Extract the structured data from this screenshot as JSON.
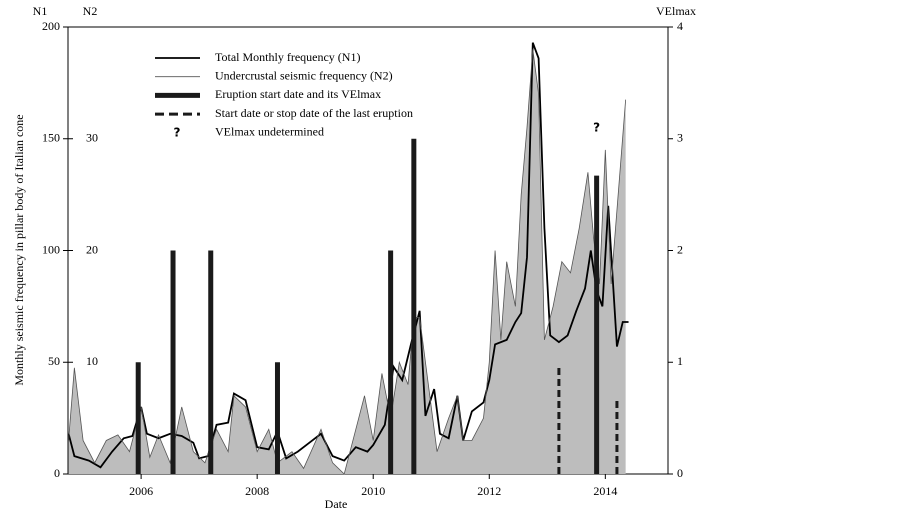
{
  "chart_data": {
    "type": "line",
    "xlabel": "Date",
    "ylabel": "Monthly seismic frequency in pillar body of Italian cone",
    "y_axis_name": "N1",
    "y2_axis_name": "VElmax",
    "xlim": [
      2004.74,
      2015.08
    ],
    "xticks": [
      2006,
      2008,
      2010,
      2012,
      2014
    ],
    "ylim": [
      0,
      200
    ],
    "yticks": [
      0,
      50,
      100,
      150,
      200
    ],
    "y2lim": [
      0,
      4
    ],
    "y2ticks": [
      0,
      1,
      2,
      3,
      4
    ],
    "n2_axis": {
      "name": "N2",
      "ylim": [
        0,
        40
      ],
      "yticks": [
        10,
        20,
        30
      ]
    },
    "series": [
      {
        "name": "Total Monthly frequency (N1)",
        "color": "#000000",
        "x": [
          2004.75,
          2004.85,
          2005.1,
          2005.3,
          2005.5,
          2005.7,
          2005.85,
          2006.0,
          2006.1,
          2006.3,
          2006.5,
          2006.7,
          2006.9,
          2007.0,
          2007.15,
          2007.3,
          2007.5,
          2007.6,
          2007.8,
          2008.0,
          2008.2,
          2008.35,
          2008.5,
          2008.7,
          2008.9,
          2009.1,
          2009.3,
          2009.5,
          2009.7,
          2009.9,
          2010.0,
          2010.2,
          2010.35,
          2010.5,
          2010.65,
          2010.8,
          2010.9,
          2011.05,
          2011.15,
          2011.3,
          2011.45,
          2011.55,
          2011.7,
          2011.9,
          2012.0,
          2012.1,
          2012.3,
          2012.45,
          2012.55,
          2012.65,
          2012.75,
          2012.85,
          2012.95,
          2013.05,
          2013.2,
          2013.35,
          2013.5,
          2013.65,
          2013.75,
          2013.85,
          2013.95,
          2014.05,
          2014.2,
          2014.3,
          2014.4
        ],
        "values": [
          18,
          8,
          6,
          3,
          10,
          16,
          17,
          30,
          18,
          16,
          18,
          17,
          14,
          7,
          8,
          22,
          23,
          36,
          33,
          12,
          11,
          19,
          7,
          10,
          14,
          18,
          8,
          6,
          12,
          10,
          13,
          22,
          48,
          42,
          58,
          73,
          26,
          38,
          18,
          16,
          35,
          15,
          28,
          32,
          42,
          58,
          60,
          68,
          72,
          97,
          193,
          186,
          110,
          62,
          59,
          62,
          73,
          83,
          100,
          82,
          75,
          120,
          57,
          68,
          68
        ]
      },
      {
        "name": "Undercrustal seismic frequency (N2)",
        "color": "#555555",
        "fill": "#bdbdbd",
        "axis": "n2",
        "x": [
          2004.75,
          2004.85,
          2005.0,
          2005.2,
          2005.4,
          2005.6,
          2005.8,
          2006.0,
          2006.15,
          2006.3,
          2006.5,
          2006.7,
          2006.9,
          2007.1,
          2007.3,
          2007.5,
          2007.6,
          2007.8,
          2008.0,
          2008.2,
          2008.35,
          2008.6,
          2008.8,
          2009.1,
          2009.3,
          2009.5,
          2009.7,
          2009.85,
          2010.0,
          2010.15,
          2010.3,
          2010.45,
          2010.6,
          2010.7,
          2010.8,
          2011.1,
          2011.3,
          2011.45,
          2011.55,
          2011.7,
          2011.9,
          2012.0,
          2012.1,
          2012.2,
          2012.3,
          2012.45,
          2012.55,
          2012.65,
          2012.75,
          2012.85,
          2012.95,
          2013.1,
          2013.25,
          2013.4,
          2013.55,
          2013.7,
          2013.8,
          2013.9,
          2014.0,
          2014.1,
          2014.35
        ],
        "values": [
          3,
          9.5,
          3,
          1,
          3,
          3.5,
          2,
          6,
          1.5,
          3.5,
          1,
          6,
          2,
          1,
          4,
          2,
          7,
          6,
          2,
          4,
          1,
          2,
          0.5,
          4,
          1,
          0,
          4,
          7,
          3,
          9,
          5,
          10,
          8,
          14,
          14,
          2,
          5,
          7,
          3,
          3,
          5,
          10,
          20,
          12,
          19,
          15,
          25,
          31,
          38,
          34,
          12,
          15,
          19,
          18,
          22,
          27,
          21,
          17,
          29,
          17,
          33.5
        ]
      }
    ],
    "eruptions": {
      "name": "Eruption start date and its VElmax",
      "color": "#1a1a1a",
      "axis": "y2",
      "x": [
        2005.95,
        2006.55,
        2007.2,
        2008.35,
        2010.3,
        2010.7,
        2013.85
      ],
      "values": [
        1,
        2,
        2,
        1,
        2,
        3,
        2.67
      ]
    },
    "last_eruption": {
      "name": "Start date or stop date of the last eruption",
      "color": "#1a1a1a",
      "axis": "y2",
      "x": [
        2013.2,
        2014.2
      ],
      "values": [
        0.95,
        0.68
      ]
    },
    "undetermined": {
      "name": "VElmax undetermined",
      "marker": "?",
      "x": 2013.85
    }
  }
}
